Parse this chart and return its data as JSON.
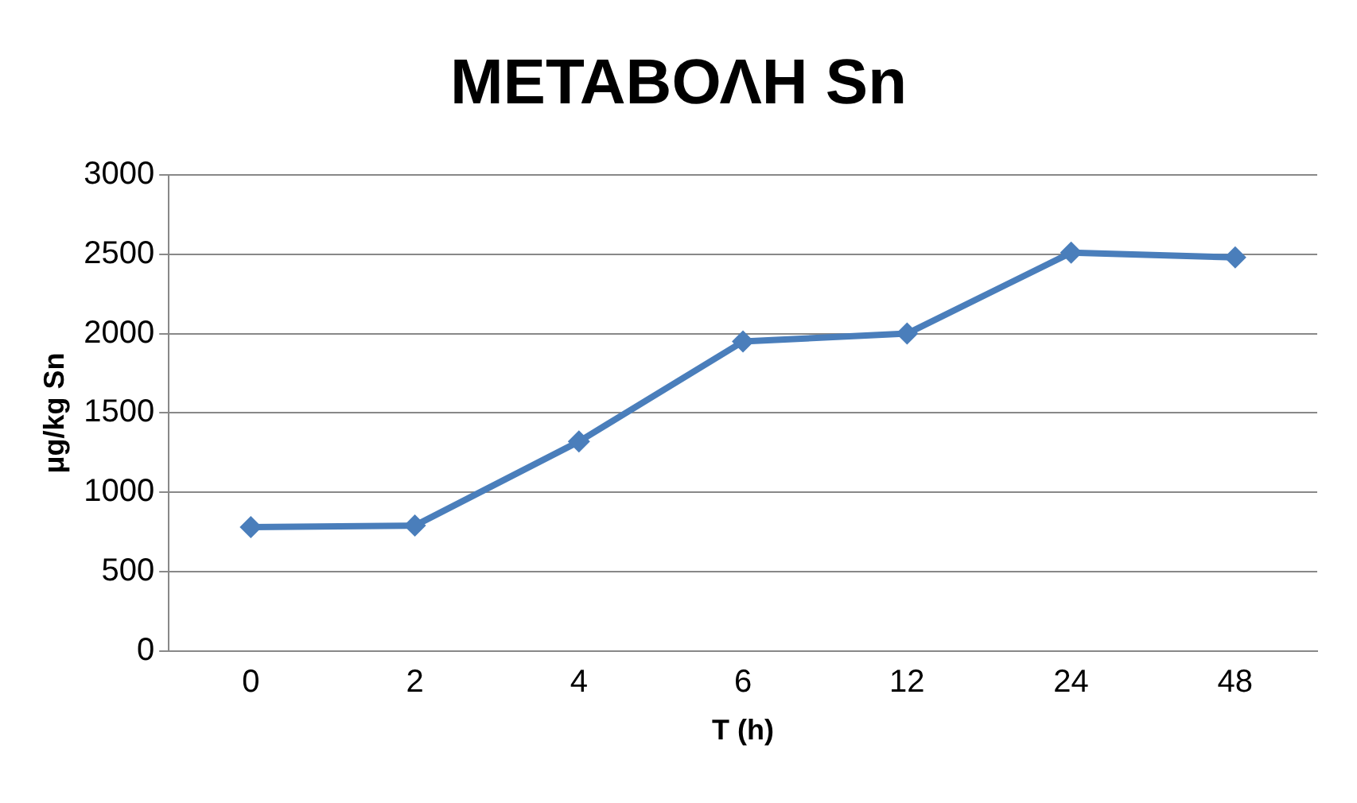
{
  "chart_data": {
    "type": "line",
    "title": "ΜΕΤΑΒΟΛΗ Sn",
    "xlabel": "T (h)",
    "ylabel": "μg/kg Sn",
    "categories": [
      "0",
      "2",
      "4",
      "6",
      "12",
      "24",
      "48"
    ],
    "series": [
      {
        "color": "#4a7ebb",
        "values": [
          780,
          790,
          1320,
          1950,
          2000,
          2510,
          2480
        ]
      }
    ],
    "ylim": [
      0,
      3000
    ],
    "yticks": [
      0,
      500,
      1000,
      1500,
      2000,
      2500,
      3000
    ],
    "grid": "y",
    "legend": false,
    "marker": "diamond",
    "line_style": "solid"
  }
}
